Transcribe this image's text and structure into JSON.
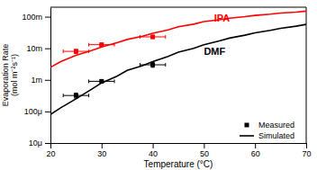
{
  "chart_data": {
    "type": "line",
    "xlabel": "Temperature (°C)",
    "ylabel": "Evaporation Rate\n(mol m⁻²s⁻¹)",
    "log": "y",
    "grid": false,
    "legend": "lower right",
    "xlim": [
      20,
      70
    ],
    "xticks": [
      20,
      30,
      40,
      50,
      60,
      70
    ],
    "ylim": [
      1e-05,
      0.2
    ],
    "yticks": [
      {
        "value": 1e-05,
        "label": "10μ"
      },
      {
        "value": 0.0001,
        "label": "100μ"
      },
      {
        "value": 0.001,
        "label": "1m"
      },
      {
        "value": 0.01,
        "label": "10m"
      },
      {
        "value": 0.1,
        "label": "100m"
      }
    ],
    "series": [
      {
        "name": "Simulated",
        "type": "line",
        "line_style": "solid",
        "color": "#ff0000",
        "x": [
          20,
          22,
          25,
          28,
          30,
          33,
          35,
          38,
          40,
          43,
          45,
          48,
          50,
          53,
          55,
          58,
          60,
          63,
          65,
          68,
          70
        ],
        "values": [
          0.0025,
          0.0038,
          0.006,
          0.0085,
          0.011,
          0.015,
          0.019,
          0.024,
          0.03,
          0.038,
          0.048,
          0.058,
          0.07,
          0.08,
          0.09,
          0.1,
          0.11,
          0.12,
          0.13,
          0.14,
          0.15
        ]
      },
      {
        "name": "Simulated",
        "type": "line",
        "line_style": "solid",
        "color": "#000000",
        "x": [
          20,
          22,
          25,
          28,
          30,
          33,
          35,
          38,
          40,
          43,
          45,
          48,
          50,
          53,
          55,
          58,
          60,
          63,
          65,
          68,
          70
        ],
        "values": [
          8e-05,
          0.00013,
          0.00025,
          0.0005,
          0.0008,
          0.0013,
          0.002,
          0.0028,
          0.0038,
          0.0055,
          0.0075,
          0.01,
          0.013,
          0.017,
          0.021,
          0.026,
          0.031,
          0.037,
          0.043,
          0.05,
          0.057
        ]
      },
      {
        "name": "Measured",
        "type": "scatter",
        "marker": "square",
        "color": "#ff0000",
        "x": [
          25,
          30,
          40
        ],
        "values": [
          0.008,
          0.013,
          0.023
        ],
        "x_error": [
          2.5,
          2.5,
          2.5
        ],
        "error": [
          0.0012,
          0.0015,
          0.0025
        ]
      },
      {
        "name": "Measured",
        "type": "scatter",
        "marker": "square",
        "color": "#000000",
        "x": [
          25,
          30,
          40
        ],
        "values": [
          0.00032,
          0.0009,
          0.003
        ],
        "x_error": [
          2.5,
          2.5,
          2.5
        ],
        "error": [
          6e-05,
          0.00012,
          0.0005
        ]
      }
    ],
    "annotations": [
      {
        "text": "IPA",
        "x": 52,
        "y": 0.07,
        "color": "#ff0000"
      },
      {
        "text": "DMF",
        "x": 50,
        "y": 0.006,
        "color": "#000000"
      }
    ]
  }
}
